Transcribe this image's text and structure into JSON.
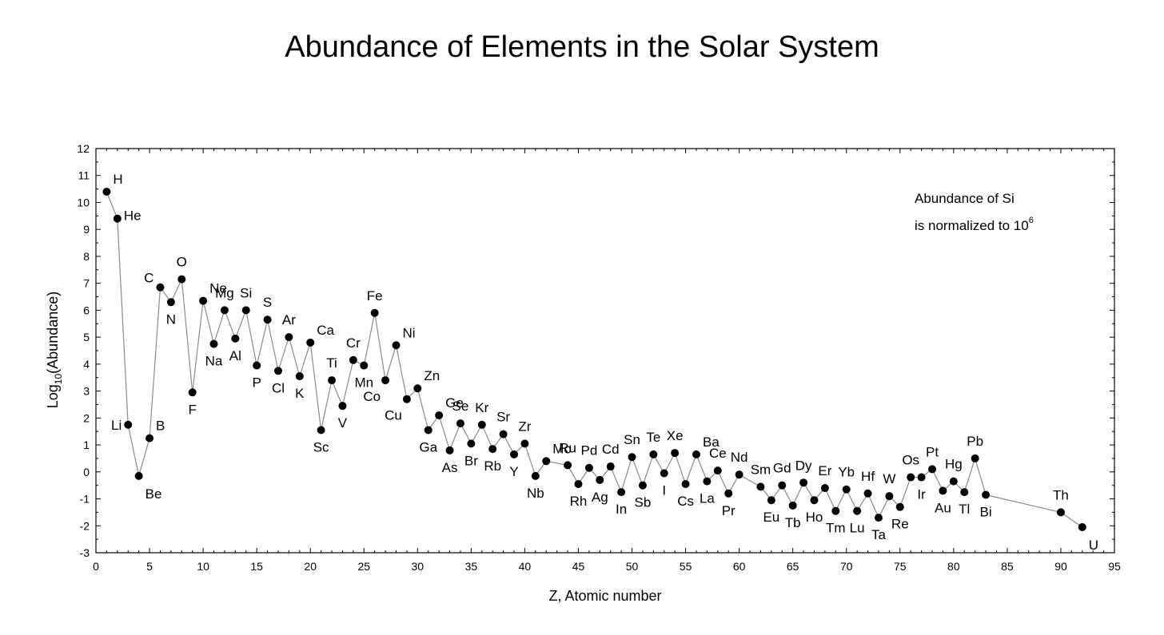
{
  "chart_data": {
    "type": "scatter",
    "title": "Abundance of Elements in the Solar System",
    "xlabel": "Z, Atomic number",
    "ylabel_base": "Log",
    "ylabel_sub": "10",
    "ylabel_rest": "(Abundance)",
    "xlim": [
      0,
      95
    ],
    "ylim": [
      -3,
      12
    ],
    "xticks": [
      0,
      5,
      10,
      15,
      20,
      25,
      30,
      35,
      40,
      45,
      50,
      55,
      60,
      65,
      70,
      75,
      80,
      85,
      90,
      95
    ],
    "yticks": [
      -3,
      -2,
      -1,
      0,
      1,
      2,
      3,
      4,
      5,
      6,
      7,
      8,
      9,
      10,
      11,
      12
    ],
    "grid": false,
    "connected": true,
    "annotation_line1": "Abundance of Si",
    "annotation_line2": "is normalized to 10",
    "annotation_sup": "6",
    "points": [
      {
        "z": 1,
        "symbol": "H",
        "y": 10.4,
        "pos": "ur"
      },
      {
        "z": 2,
        "symbol": "He",
        "y": 9.4,
        "pos": "r"
      },
      {
        "z": 3,
        "symbol": "Li",
        "y": 1.75,
        "pos": "l"
      },
      {
        "z": 4,
        "symbol": "Be",
        "y": -0.15,
        "pos": "dr"
      },
      {
        "z": 5,
        "symbol": "B",
        "y": 1.25,
        "pos": "ur"
      },
      {
        "z": 6,
        "symbol": "C",
        "y": 6.85,
        "pos": "ul"
      },
      {
        "z": 7,
        "symbol": "N",
        "y": 6.3,
        "pos": "d"
      },
      {
        "z": 8,
        "symbol": "O",
        "y": 7.15,
        "pos": "u"
      },
      {
        "z": 9,
        "symbol": "F",
        "y": 2.95,
        "pos": "d"
      },
      {
        "z": 10,
        "symbol": "Ne",
        "y": 6.35,
        "pos": "ur"
      },
      {
        "z": 11,
        "symbol": "Na",
        "y": 4.75,
        "pos": "d"
      },
      {
        "z": 12,
        "symbol": "Mg",
        "y": 6.0,
        "pos": "u"
      },
      {
        "z": 13,
        "symbol": "Al",
        "y": 4.95,
        "pos": "d"
      },
      {
        "z": 14,
        "symbol": "Si",
        "y": 6.0,
        "pos": "u"
      },
      {
        "z": 15,
        "symbol": "P",
        "y": 3.95,
        "pos": "d"
      },
      {
        "z": 16,
        "symbol": "S",
        "y": 5.65,
        "pos": "u"
      },
      {
        "z": 17,
        "symbol": "Cl",
        "y": 3.75,
        "pos": "d"
      },
      {
        "z": 18,
        "symbol": "Ar",
        "y": 5.0,
        "pos": "u"
      },
      {
        "z": 19,
        "symbol": "K",
        "y": 3.55,
        "pos": "d"
      },
      {
        "z": 20,
        "symbol": "Ca",
        "y": 4.8,
        "pos": "ur"
      },
      {
        "z": 21,
        "symbol": "Sc",
        "y": 1.55,
        "pos": "d"
      },
      {
        "z": 22,
        "symbol": "Ti",
        "y": 3.4,
        "pos": "u"
      },
      {
        "z": 23,
        "symbol": "V",
        "y": 2.45,
        "pos": "d"
      },
      {
        "z": 24,
        "symbol": "Cr",
        "y": 4.15,
        "pos": "u"
      },
      {
        "z": 25,
        "symbol": "Mn",
        "y": 3.95,
        "pos": "d"
      },
      {
        "z": 26,
        "symbol": "Fe",
        "y": 5.9,
        "pos": "u"
      },
      {
        "z": 27,
        "symbol": "Co",
        "y": 3.4,
        "pos": "dl"
      },
      {
        "z": 28,
        "symbol": "Ni",
        "y": 4.7,
        "pos": "ur"
      },
      {
        "z": 29,
        "symbol": "Cu",
        "y": 2.7,
        "pos": "dl"
      },
      {
        "z": 30,
        "symbol": "Zn",
        "y": 3.1,
        "pos": "ur"
      },
      {
        "z": 31,
        "symbol": "Ga",
        "y": 1.55,
        "pos": "d"
      },
      {
        "z": 32,
        "symbol": "Ge",
        "y": 2.1,
        "pos": "ur"
      },
      {
        "z": 33,
        "symbol": "As",
        "y": 0.8,
        "pos": "d"
      },
      {
        "z": 34,
        "symbol": "Se",
        "y": 1.8,
        "pos": "u"
      },
      {
        "z": 35,
        "symbol": "Br",
        "y": 1.05,
        "pos": "d"
      },
      {
        "z": 36,
        "symbol": "Kr",
        "y": 1.75,
        "pos": "u"
      },
      {
        "z": 37,
        "symbol": "Rb",
        "y": 0.85,
        "pos": "d"
      },
      {
        "z": 38,
        "symbol": "Sr",
        "y": 1.4,
        "pos": "u"
      },
      {
        "z": 39,
        "symbol": "Y",
        "y": 0.65,
        "pos": "d"
      },
      {
        "z": 40,
        "symbol": "Zr",
        "y": 1.05,
        "pos": "u"
      },
      {
        "z": 41,
        "symbol": "Nb",
        "y": -0.15,
        "pos": "d"
      },
      {
        "z": 42,
        "symbol": "Mo",
        "y": 0.4,
        "pos": "ur"
      },
      {
        "z": 44,
        "symbol": "Ru",
        "y": 0.25,
        "pos": "u"
      },
      {
        "z": 45,
        "symbol": "Rh",
        "y": -0.45,
        "pos": "d"
      },
      {
        "z": 46,
        "symbol": "Pd",
        "y": 0.15,
        "pos": "u"
      },
      {
        "z": 47,
        "symbol": "Ag",
        "y": -0.3,
        "pos": "d"
      },
      {
        "z": 48,
        "symbol": "Cd",
        "y": 0.2,
        "pos": "u"
      },
      {
        "z": 49,
        "symbol": "In",
        "y": -0.75,
        "pos": "d"
      },
      {
        "z": 50,
        "symbol": "Sn",
        "y": 0.55,
        "pos": "u"
      },
      {
        "z": 51,
        "symbol": "Sb",
        "y": -0.5,
        "pos": "d"
      },
      {
        "z": 52,
        "symbol": "Te",
        "y": 0.65,
        "pos": "u"
      },
      {
        "z": 53,
        "symbol": "I",
        "y": -0.05,
        "pos": "d"
      },
      {
        "z": 54,
        "symbol": "Xe",
        "y": 0.7,
        "pos": "u"
      },
      {
        "z": 55,
        "symbol": "Cs",
        "y": -0.45,
        "pos": "d"
      },
      {
        "z": 56,
        "symbol": "Ba",
        "y": 0.65,
        "pos": "ur"
      },
      {
        "z": 57,
        "symbol": "La",
        "y": -0.35,
        "pos": "d"
      },
      {
        "z": 58,
        "symbol": "Ce",
        "y": 0.05,
        "pos": "u"
      },
      {
        "z": 59,
        "symbol": "Pr",
        "y": -0.8,
        "pos": "d"
      },
      {
        "z": 60,
        "symbol": "Nd",
        "y": -0.1,
        "pos": "u"
      },
      {
        "z": 62,
        "symbol": "Sm",
        "y": -0.55,
        "pos": "u"
      },
      {
        "z": 63,
        "symbol": "Eu",
        "y": -1.05,
        "pos": "d"
      },
      {
        "z": 64,
        "symbol": "Gd",
        "y": -0.5,
        "pos": "u"
      },
      {
        "z": 65,
        "symbol": "Tb",
        "y": -1.25,
        "pos": "d"
      },
      {
        "z": 66,
        "symbol": "Dy",
        "y": -0.4,
        "pos": "u"
      },
      {
        "z": 67,
        "symbol": "Ho",
        "y": -1.05,
        "pos": "d"
      },
      {
        "z": 68,
        "symbol": "Er",
        "y": -0.6,
        "pos": "u"
      },
      {
        "z": 69,
        "symbol": "Tm",
        "y": -1.45,
        "pos": "d"
      },
      {
        "z": 70,
        "symbol": "Yb",
        "y": -0.65,
        "pos": "u"
      },
      {
        "z": 71,
        "symbol": "Lu",
        "y": -1.45,
        "pos": "d"
      },
      {
        "z": 72,
        "symbol": "Hf",
        "y": -0.8,
        "pos": "u"
      },
      {
        "z": 73,
        "symbol": "Ta",
        "y": -1.7,
        "pos": "d"
      },
      {
        "z": 74,
        "symbol": "W",
        "y": -0.9,
        "pos": "u"
      },
      {
        "z": 75,
        "symbol": "Re",
        "y": -1.3,
        "pos": "d"
      },
      {
        "z": 76,
        "symbol": "Os",
        "y": -0.2,
        "pos": "u"
      },
      {
        "z": 77,
        "symbol": "Ir",
        "y": -0.2,
        "pos": "d"
      },
      {
        "z": 78,
        "symbol": "Pt",
        "y": 0.1,
        "pos": "u"
      },
      {
        "z": 79,
        "symbol": "Au",
        "y": -0.7,
        "pos": "d"
      },
      {
        "z": 80,
        "symbol": "Hg",
        "y": -0.35,
        "pos": "u"
      },
      {
        "z": 81,
        "symbol": "Tl",
        "y": -0.75,
        "pos": "d"
      },
      {
        "z": 82,
        "symbol": "Pb",
        "y": 0.5,
        "pos": "u"
      },
      {
        "z": 83,
        "symbol": "Bi",
        "y": -0.85,
        "pos": "d"
      },
      {
        "z": 90,
        "symbol": "Th",
        "y": -1.5,
        "pos": "u"
      },
      {
        "z": 92,
        "symbol": "U",
        "y": -2.05,
        "pos": "dr"
      }
    ]
  }
}
